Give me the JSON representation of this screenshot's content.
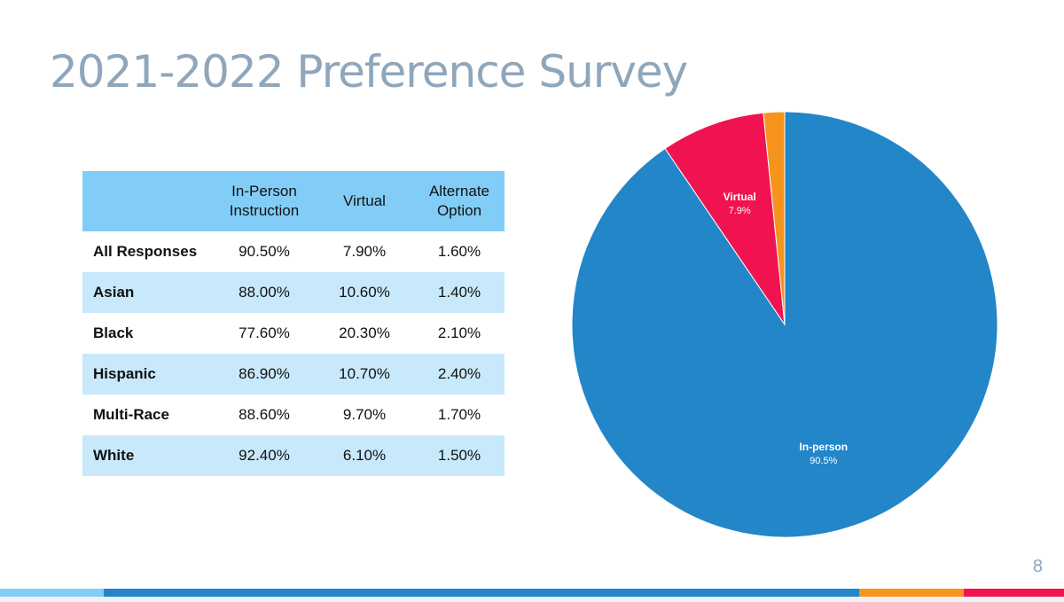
{
  "slide": {
    "title": "2021-2022 Preference Survey",
    "page_number": "8"
  },
  "table": {
    "headers": [
      "",
      "In-Person Instruction",
      "Virtual",
      "Alternate Option"
    ],
    "rows": [
      {
        "label": "All Responses",
        "in_person": "90.50%",
        "virtual": "7.90%",
        "alternate": "1.60%"
      },
      {
        "label": "Asian",
        "in_person": "88.00%",
        "virtual": "10.60%",
        "alternate": "1.40%"
      },
      {
        "label": "Black",
        "in_person": "77.60%",
        "virtual": "20.30%",
        "alternate": "2.10%"
      },
      {
        "label": "Hispanic",
        "in_person": "86.90%",
        "virtual": "10.70%",
        "alternate": "2.40%"
      },
      {
        "label": "Multi-Race",
        "in_person": "88.60%",
        "virtual": "9.70%",
        "alternate": "1.70%"
      },
      {
        "label": "White",
        "in_person": "92.40%",
        "virtual": "6.10%",
        "alternate": "1.50%"
      }
    ]
  },
  "chart_data": [
    {
      "type": "table",
      "columns": [
        "",
        "In-Person Instruction",
        "Virtual",
        "Alternate Option"
      ],
      "rows": [
        [
          "All Responses",
          "90.50%",
          "7.90%",
          "1.60%"
        ],
        [
          "Asian",
          "88.00%",
          "10.60%",
          "1.40%"
        ],
        [
          "Black",
          "77.60%",
          "20.30%",
          "2.10%"
        ],
        [
          "Hispanic",
          "86.90%",
          "10.70%",
          "2.40%"
        ],
        [
          "Multi-Race",
          "88.60%",
          "9.70%",
          "1.70%"
        ],
        [
          "White",
          "92.40%",
          "6.10%",
          "1.50%"
        ]
      ]
    },
    {
      "type": "pie",
      "title": "",
      "slices": [
        {
          "label": "In-person",
          "value": 90.5,
          "value_label": "90.5%",
          "color": "#2286c8",
          "show_label": true
        },
        {
          "label": "Virtual",
          "value": 7.9,
          "value_label": "7.9%",
          "color": "#f0134f",
          "show_label": true
        },
        {
          "label": "",
          "value": 1.6,
          "value_label": "",
          "color": "#f7941d",
          "show_label": false
        }
      ],
      "legend": "none"
    }
  ],
  "colors": {
    "title": "#8fa6bb",
    "header_bg": "#82cdf8",
    "band_bg": "#c8e9fb",
    "in_person": "#2286c8",
    "virtual": "#f0134f",
    "alternate": "#f7941d"
  },
  "bottom_bar": [
    "#82cdf8",
    "#2286c8",
    "#f7941d",
    "#f0134f"
  ]
}
